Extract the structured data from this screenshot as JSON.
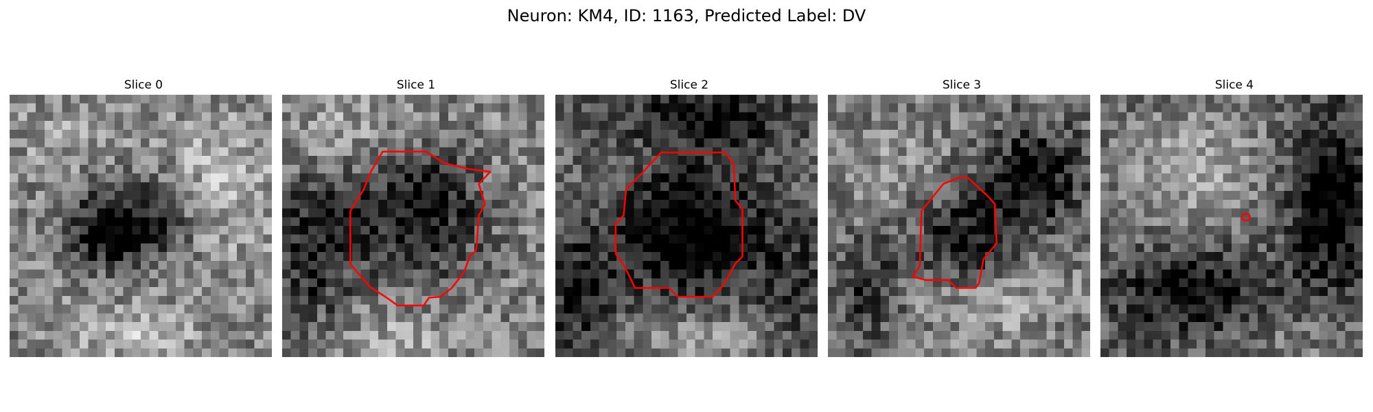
{
  "figure": {
    "title": "Neuron: KM4, ID: 1163, Predicted Label: DV",
    "contour_color": "#ff0000",
    "grid_size": 30,
    "panels": [
      {
        "title": "Slice 0",
        "blobs": [
          {
            "cx": 14.5,
            "cy": 14.5,
            "r": 60,
            "v": 0.55
          },
          {
            "cx": 14,
            "cy": 14,
            "rx": 7,
            "ry": 5,
            "v": -0.45
          },
          {
            "cx": 10,
            "cy": 16,
            "rx": 5,
            "ry": 4,
            "v": -0.25
          },
          {
            "cx": 24,
            "cy": 10,
            "rx": 6,
            "ry": 8,
            "v": 0.2
          },
          {
            "cx": 14,
            "cy": 27,
            "rx": 7,
            "ry": 3,
            "v": 0.2
          },
          {
            "cx": 5,
            "cy": 4,
            "rx": 6,
            "ry": 4,
            "v": 0.1
          }
        ],
        "noise": 0.22,
        "seed": 11,
        "contour": []
      },
      {
        "title": "Slice 1",
        "blobs": [
          {
            "cx": 14.5,
            "cy": 14.5,
            "r": 60,
            "v": 0.55
          },
          {
            "cx": 15,
            "cy": 13,
            "rx": 8,
            "ry": 8,
            "v": -0.5
          },
          {
            "cx": 3,
            "cy": 17,
            "rx": 5,
            "ry": 9,
            "v": -0.4
          },
          {
            "cx": 7,
            "cy": 4,
            "rx": 8,
            "ry": 5,
            "v": 0.15
          },
          {
            "cx": 26,
            "cy": 6,
            "rx": 5,
            "ry": 7,
            "v": 0.05
          },
          {
            "cx": 13,
            "cy": 27,
            "rx": 7,
            "ry": 3,
            "v": 0.15
          }
        ],
        "noise": 0.22,
        "seed": 23,
        "contour": [
          [
            11.5,
            6.5
          ],
          [
            16.5,
            6.5
          ],
          [
            18.5,
            7.8
          ],
          [
            21.4,
            8.5
          ],
          [
            23.8,
            8.8
          ],
          [
            22.5,
            10.2
          ],
          [
            23.2,
            12.5
          ],
          [
            22.5,
            13.8
          ],
          [
            22.2,
            17.8
          ],
          [
            21.5,
            18.4
          ],
          [
            20.8,
            20.3
          ],
          [
            19.4,
            22.1
          ],
          [
            18.1,
            23.1
          ],
          [
            16.8,
            23.2
          ],
          [
            16.2,
            24.1
          ],
          [
            13.2,
            24.1
          ],
          [
            12.1,
            23.3
          ],
          [
            10.1,
            22.0
          ],
          [
            7.8,
            19.4
          ],
          [
            7.8,
            13.3
          ],
          [
            8.6,
            12.0
          ],
          [
            9.3,
            10.9
          ],
          [
            10.2,
            8.7
          ]
        ]
      },
      {
        "title": "Slice 2",
        "blobs": [
          {
            "cx": 14.5,
            "cy": 14.5,
            "r": 60,
            "v": 0.45
          },
          {
            "cx": 15,
            "cy": 15,
            "rx": 9,
            "ry": 8,
            "v": -0.55
          },
          {
            "cx": 17,
            "cy": 2,
            "rx": 10,
            "ry": 3,
            "v": -0.4
          },
          {
            "cx": 2,
            "cy": 22,
            "rx": 4,
            "ry": 7,
            "v": -0.3
          },
          {
            "cx": 27,
            "cy": 22,
            "rx": 4,
            "ry": 8,
            "v": -0.2
          },
          {
            "cx": 16,
            "cy": 27,
            "rx": 8,
            "ry": 3,
            "v": 0.2
          }
        ],
        "noise": 0.2,
        "seed": 37,
        "contour": [
          [
            12.1,
            6.6
          ],
          [
            19.4,
            6.6
          ],
          [
            20.4,
            7.9
          ],
          [
            20.6,
            12.1
          ],
          [
            21.4,
            13.1
          ],
          [
            21.4,
            18.5
          ],
          [
            20.6,
            19.3
          ],
          [
            19.2,
            21.8
          ],
          [
            18.0,
            23.1
          ],
          [
            14.0,
            23.1
          ],
          [
            13.0,
            22.1
          ],
          [
            9.1,
            22.1
          ],
          [
            8.4,
            20.6
          ],
          [
            7.7,
            19.3
          ],
          [
            6.9,
            18.2
          ],
          [
            6.9,
            14.8
          ],
          [
            7.8,
            13.8
          ],
          [
            8.1,
            10.8
          ],
          [
            9.7,
            9.2
          ]
        ]
      },
      {
        "title": "Slice 3",
        "blobs": [
          {
            "cx": 14.5,
            "cy": 14.5,
            "r": 60,
            "v": 0.5
          },
          {
            "cx": 15,
            "cy": 16,
            "rx": 6,
            "ry": 6,
            "v": -0.4
          },
          {
            "cx": 23,
            "cy": 9,
            "rx": 6,
            "ry": 6,
            "v": -0.45
          },
          {
            "cx": 4,
            "cy": 22,
            "rx": 4,
            "ry": 6,
            "v": -0.3
          },
          {
            "cx": 18,
            "cy": 23,
            "rx": 8,
            "ry": 4,
            "v": 0.2
          },
          {
            "cx": 7,
            "cy": 8,
            "rx": 6,
            "ry": 6,
            "v": 0.1
          }
        ],
        "noise": 0.22,
        "seed": 51,
        "contour": [
          [
            13.2,
            10.2
          ],
          [
            14.9,
            9.5
          ],
          [
            16.0,
            9.5
          ],
          [
            18.3,
            11.6
          ],
          [
            19.1,
            12.5
          ],
          [
            19.3,
            17.0
          ],
          [
            17.8,
            18.8
          ],
          [
            17.3,
            21.5
          ],
          [
            16.9,
            22.1
          ],
          [
            14.7,
            22.1
          ],
          [
            13.8,
            21.2
          ],
          [
            11.2,
            21.2
          ],
          [
            9.7,
            20.8
          ],
          [
            10.5,
            19.6
          ],
          [
            10.7,
            13.3
          ]
        ]
      },
      {
        "title": "Slice 4",
        "blobs": [
          {
            "cx": 14.5,
            "cy": 14.5,
            "r": 60,
            "v": 0.45
          },
          {
            "cx": 10,
            "cy": 8,
            "rx": 8,
            "ry": 7,
            "v": 0.2
          },
          {
            "cx": 26,
            "cy": 12,
            "rx": 5,
            "ry": 10,
            "v": -0.5
          },
          {
            "cx": 10,
            "cy": 22,
            "rx": 9,
            "ry": 5,
            "v": -0.45
          },
          {
            "cx": 22,
            "cy": 28,
            "rx": 8,
            "ry": 3,
            "v": 0.1
          }
        ],
        "noise": 0.2,
        "seed": 67,
        "contour": [
          [
            16.6,
            13.6
          ],
          [
            17.0,
            13.7
          ],
          [
            17.1,
            14.0
          ],
          [
            17.0,
            14.3
          ],
          [
            16.6,
            14.4
          ],
          [
            16.3,
            14.3
          ],
          [
            16.2,
            14.0
          ],
          [
            16.3,
            13.7
          ]
        ]
      }
    ]
  }
}
